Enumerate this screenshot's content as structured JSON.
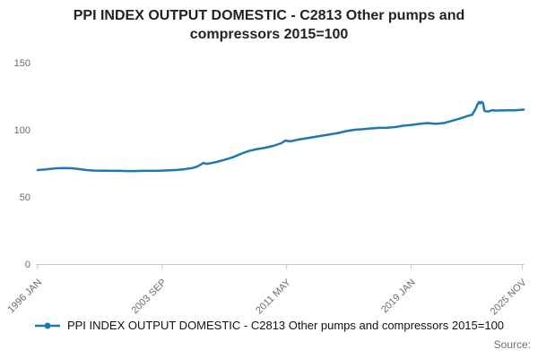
{
  "title": "PPI INDEX OUTPUT DOMESTIC - C2813 Other pumps and compressors 2015=100",
  "legend": {
    "label": "PPI INDEX OUTPUT DOMESTIC - C2813 Other pumps and compressors 2015=100"
  },
  "source_label": "Source:",
  "colors": {
    "line": "#1f77b4",
    "axis": "#c9c9c9",
    "tick_text": "#6b6b6b"
  },
  "chart_data": {
    "type": "line",
    "title": "PPI INDEX OUTPUT DOMESTIC - C2813 Other pumps and compressors 2015=100",
    "xlabel": "",
    "ylabel": "",
    "grid": false,
    "legend_position": "bottom",
    "ylim": [
      0,
      150
    ],
    "y_ticks": [
      0,
      50,
      100,
      150
    ],
    "x_range": [
      1996.0,
      2025.92
    ],
    "x_ticks": [
      {
        "label": "1996 JAN",
        "x": 1996.0
      },
      {
        "label": "2003 SEP",
        "x": 2003.667
      },
      {
        "label": "2011 MAY",
        "x": 2011.333
      },
      {
        "label": "2019 JAN",
        "x": 2019.0
      },
      {
        "label": "2025 NOV",
        "x": 2025.833
      }
    ],
    "series": [
      {
        "name": "PPI INDEX OUTPUT DOMESTIC - C2813 Other pumps and compressors 2015=100",
        "color": "#1f77b4",
        "x": [
          1996.0,
          1996.25,
          1996.5,
          1997.0,
          1997.5,
          1998.0,
          1998.5,
          1999.0,
          1999.5,
          2000.0,
          2000.5,
          2001.0,
          2001.5,
          2002.0,
          2002.5,
          2003.0,
          2003.5,
          2004.0,
          2004.5,
          2005.0,
          2005.5,
          2005.8,
          2006.0,
          2006.2,
          2006.4,
          2006.7,
          2007.0,
          2007.5,
          2008.0,
          2008.5,
          2009.0,
          2009.5,
          2010.0,
          2010.5,
          2011.0,
          2011.25,
          2011.5,
          2011.75,
          2012.0,
          2012.5,
          2013.0,
          2013.5,
          2014.0,
          2014.5,
          2015.0,
          2015.5,
          2016.0,
          2016.5,
          2017.0,
          2017.5,
          2018.0,
          2018.5,
          2019.0,
          2019.5,
          2020.0,
          2020.5,
          2021.0,
          2021.5,
          2022.0,
          2022.5,
          2022.75,
          2023.0,
          2023.08,
          2023.17,
          2023.25,
          2023.33,
          2023.42,
          2023.5,
          2023.58,
          2023.75,
          2024.0,
          2024.25,
          2024.5,
          2024.75,
          2025.0,
          2025.33,
          2025.67,
          2025.92
        ],
        "values": [
          70,
          70.3,
          70.5,
          71.2,
          71.5,
          71.4,
          70.8,
          70,
          69.6,
          69.5,
          69.4,
          69.4,
          69.3,
          69.3,
          69.4,
          69.4,
          69.5,
          69.7,
          70,
          70.6,
          71.5,
          72.5,
          73.8,
          75.3,
          74.6,
          75.2,
          76,
          77.6,
          79.5,
          82,
          84.2,
          85.6,
          86.6,
          88,
          90,
          92,
          91.4,
          91.8,
          92.6,
          93.6,
          94.6,
          95.6,
          96.6,
          97.6,
          99,
          100,
          100.4,
          101,
          101.4,
          101.5,
          102,
          103,
          103.6,
          104.4,
          105,
          104.4,
          105,
          106.6,
          108.4,
          110.4,
          111.2,
          116.5,
          119,
          120.6,
          119.6,
          120.8,
          119.8,
          114.2,
          113.8,
          113.6,
          114.6,
          114.3,
          114.5,
          114.4,
          114.6,
          114.5,
          114.7,
          115
        ]
      }
    ]
  }
}
